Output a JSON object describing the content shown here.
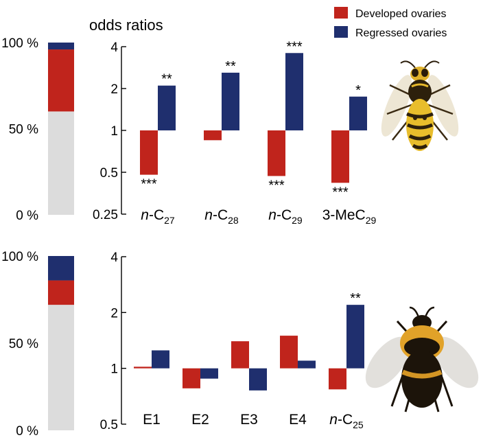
{
  "colors": {
    "developed": "#c0241c",
    "regressed": "#1f2f6e",
    "remainder": "#dcdcdc"
  },
  "legend": {
    "developed_label": "Developed ovaries",
    "regressed_label": "Regressed ovaries"
  },
  "ylabel": "odds ratios",
  "chart_data": [
    {
      "type": "bar",
      "name": "wasp-odds-ratios",
      "ylabel": "odds ratios",
      "yscale": "log2",
      "ylim": [
        0.25,
        4
      ],
      "yticks": [
        "0.25",
        "0.5",
        "1",
        "2",
        "4"
      ],
      "yticks_values": [
        0.25,
        0.5,
        1,
        2,
        4
      ],
      "categories": [
        {
          "pre": "n",
          "base": "-C",
          "sub": "27"
        },
        {
          "pre": "n",
          "base": "-C",
          "sub": "28"
        },
        {
          "pre": "n",
          "base": "-C",
          "sub": "29"
        },
        {
          "pre": "",
          "base": "3-MeC",
          "sub": "29"
        }
      ],
      "series": [
        {
          "name": "Developed ovaries",
          "values": [
            0.48,
            0.85,
            0.47,
            0.42
          ],
          "stars": [
            "***",
            "",
            "***",
            "***"
          ]
        },
        {
          "name": "Regressed ovaries",
          "values": [
            2.1,
            2.6,
            3.6,
            1.75
          ],
          "stars": [
            "**",
            "**",
            "***",
            "*"
          ]
        }
      ]
    },
    {
      "type": "bar",
      "name": "bumblebee-odds-ratios",
      "yscale": "log2",
      "ylim": [
        0.5,
        4
      ],
      "yticks": [
        "0.5",
        "1",
        "2",
        "4"
      ],
      "yticks_values": [
        0.5,
        1,
        2,
        4
      ],
      "categories": [
        {
          "pre": "",
          "base": "E1",
          "sub": ""
        },
        {
          "pre": "",
          "base": "E2",
          "sub": ""
        },
        {
          "pre": "",
          "base": "E3",
          "sub": ""
        },
        {
          "pre": "",
          "base": "E4",
          "sub": ""
        },
        {
          "pre": "n",
          "base": "-C",
          "sub": "25"
        }
      ],
      "series": [
        {
          "name": "Developed ovaries",
          "values": [
            1.02,
            0.78,
            1.4,
            1.5,
            0.77
          ],
          "stars": [
            "",
            "",
            "",
            "",
            ""
          ]
        },
        {
          "name": "Regressed ovaries",
          "values": [
            1.25,
            0.88,
            0.76,
            1.1,
            2.2
          ],
          "stars": [
            "",
            "",
            "",
            "",
            "**"
          ]
        }
      ]
    },
    {
      "type": "bar",
      "name": "wasp-proportions",
      "stacked": true,
      "yticks": [
        "0 %",
        "50 %",
        "100 %"
      ],
      "ylim": [
        0,
        100
      ],
      "segments": [
        {
          "name": "remainder",
          "value": 60
        },
        {
          "name": "Developed ovaries",
          "value": 36
        },
        {
          "name": "Regressed ovaries",
          "value": 4
        }
      ]
    },
    {
      "type": "bar",
      "name": "bumblebee-proportions",
      "stacked": true,
      "yticks": [
        "0 %",
        "50 %",
        "100 %"
      ],
      "ylim": [
        0,
        100
      ],
      "segments": [
        {
          "name": "remainder",
          "value": 72
        },
        {
          "name": "Developed ovaries",
          "value": 14
        },
        {
          "name": "Regressed ovaries",
          "value": 14
        }
      ]
    }
  ],
  "images": {
    "wasp": "wasp-photo",
    "bee": "bumblebee-photo"
  }
}
